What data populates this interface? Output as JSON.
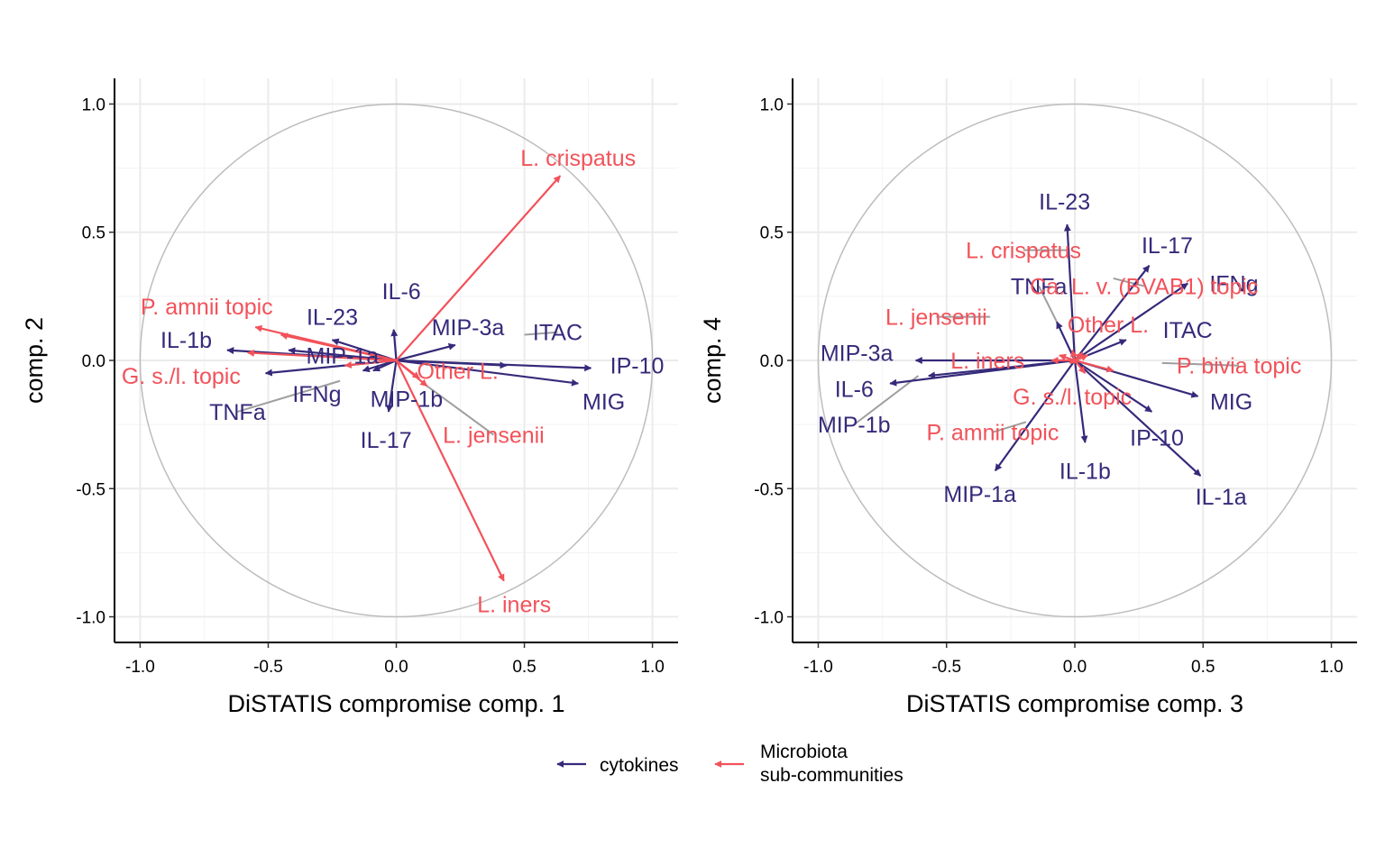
{
  "colors": {
    "cytokines": "#352a7a",
    "microbiota": "#f2525a",
    "leader": "#9e9e9e"
  },
  "legend": {
    "entries": [
      {
        "key": "cytokines",
        "lines": [
          "cytokines"
        ]
      },
      {
        "key": "microbiota",
        "lines": [
          "Microbiota",
          "sub-communities"
        ]
      }
    ]
  },
  "chart_data": [
    {
      "type": "scatter",
      "variant": "correlation-circle-arrows",
      "title": "",
      "xlabel": "DiSTATIS compromise comp. 1",
      "ylabel": "comp. 2",
      "xlim": [
        -1.1,
        1.1
      ],
      "ylim": [
        -1.1,
        1.1
      ],
      "xticks": [
        -1.0,
        -0.5,
        0.0,
        0.5,
        1.0
      ],
      "yticks": [
        -1.0,
        -0.5,
        0.0,
        0.5,
        1.0
      ],
      "xtick_labels": [
        "-1.0",
        "-0.5",
        "0.0",
        "0.5",
        "1.0"
      ],
      "ytick_labels": [
        "-1.0",
        "-0.5",
        "0.0",
        "0.5",
        "1.0"
      ],
      "grid": true,
      "unit_circle": true,
      "series": [
        {
          "name": "cytokines",
          "points": [
            {
              "label": "IP-10",
              "x": 0.76,
              "y": -0.03,
              "lx": 0.94,
              "ly": -0.02
            },
            {
              "label": "MIG",
              "x": 0.71,
              "y": -0.09,
              "lx": 0.81,
              "ly": -0.16
            },
            {
              "label": "ITAC",
              "x": 0.43,
              "y": -0.02,
              "lx": 0.63,
              "ly": 0.11,
              "leader": [
                0.5,
                0.1
              ]
            },
            {
              "label": "MIP-3a",
              "x": 0.23,
              "y": 0.06,
              "lx": 0.28,
              "ly": 0.13
            },
            {
              "label": "IL-6",
              "x": -0.01,
              "y": 0.12,
              "lx": 0.02,
              "ly": 0.27
            },
            {
              "label": "IL-23",
              "x": -0.25,
              "y": 0.08,
              "lx": -0.25,
              "ly": 0.17
            },
            {
              "label": "MIP-1a",
              "x": -0.42,
              "y": 0.04,
              "lx": -0.21,
              "ly": 0.02
            },
            {
              "label": "IL-1b",
              "x": -0.66,
              "y": 0.04,
              "lx": -0.82,
              "ly": 0.08
            },
            {
              "label": "IFNg",
              "x": -0.51,
              "y": -0.05,
              "lx": -0.31,
              "ly": -0.13
            },
            {
              "label": "TNFa",
              "x": -0.13,
              "y": -0.04,
              "lx": -0.62,
              "ly": -0.2,
              "leader": [
                -0.22,
                -0.08
              ]
            },
            {
              "label": "MIP-1b",
              "x": -0.09,
              "y": -0.04,
              "lx": 0.04,
              "ly": -0.15
            },
            {
              "label": "IL-17",
              "x": -0.03,
              "y": -0.2,
              "lx": -0.04,
              "ly": -0.31
            }
          ]
        },
        {
          "name": "Microbiota sub-communities",
          "points": [
            {
              "label": "L. crispatus",
              "x": 0.64,
              "y": 0.72,
              "lx": 0.71,
              "ly": 0.79
            },
            {
              "label": "L. iners",
              "x": 0.42,
              "y": -0.86,
              "lx": 0.46,
              "ly": -0.95
            },
            {
              "label": "L. jensenii",
              "x": 0.12,
              "y": -0.1,
              "lx": 0.38,
              "ly": -0.29,
              "leader": [
                0.12,
                -0.1
              ]
            },
            {
              "label": "Other L.",
              "x": 0.09,
              "y": -0.07,
              "lx": 0.24,
              "ly": -0.04
            },
            {
              "label": "P. amnii topic",
              "x": -0.55,
              "y": 0.13,
              "lx": -0.74,
              "ly": 0.21
            },
            {
              "label": "G. s./l. topic",
              "x": -0.58,
              "y": 0.03,
              "lx": -0.84,
              "ly": -0.06
            },
            {
              "label": "P. bivia topic",
              "x": -0.45,
              "y": 0.1,
              "lx": -1.5,
              "ly": 0.0,
              "hidden_label": true
            },
            {
              "label": "Ca. L. v. (BVAB1) topic",
              "x": -0.2,
              "y": -0.02,
              "lx": -1.5,
              "ly": 0.0,
              "hidden_label": true
            }
          ]
        }
      ]
    },
    {
      "type": "scatter",
      "variant": "correlation-circle-arrows",
      "title": "",
      "xlabel": "DiSTATIS compromise comp. 3",
      "ylabel": "comp. 4",
      "xlim": [
        -1.1,
        1.1
      ],
      "ylim": [
        -1.1,
        1.1
      ],
      "xticks": [
        -1.0,
        -0.5,
        0.0,
        0.5,
        1.0
      ],
      "yticks": [
        -1.0,
        -0.5,
        0.0,
        0.5,
        1.0
      ],
      "xtick_labels": [
        "-1.0",
        "-0.5",
        "0.0",
        "0.5",
        "1.0"
      ],
      "ytick_labels": [
        "-1.0",
        "-0.5",
        "0.0",
        "0.5",
        "1.0"
      ],
      "grid": true,
      "unit_circle": true,
      "series": [
        {
          "name": "cytokines",
          "points": [
            {
              "label": "IL-23",
              "x": -0.03,
              "y": 0.53,
              "lx": -0.04,
              "ly": 0.62
            },
            {
              "label": "IL-17",
              "x": 0.29,
              "y": 0.37,
              "lx": 0.36,
              "ly": 0.45
            },
            {
              "label": "IFNg",
              "x": 0.44,
              "y": 0.3,
              "lx": 0.62,
              "ly": 0.3
            },
            {
              "label": "ITAC",
              "x": 0.2,
              "y": 0.08,
              "lx": 0.44,
              "ly": 0.12
            },
            {
              "label": "TNFa",
              "x": -0.07,
              "y": 0.15,
              "lx": -0.14,
              "ly": 0.29,
              "leader": [
                -0.07,
                0.15
              ]
            },
            {
              "label": "MIP-3a",
              "x": -0.62,
              "y": 0.0,
              "lx": -0.85,
              "ly": 0.03
            },
            {
              "label": "IL-6",
              "x": -0.72,
              "y": -0.09,
              "lx": -0.86,
              "ly": -0.11
            },
            {
              "label": "MIP-1b",
              "x": -0.57,
              "y": -0.06,
              "lx": -0.86,
              "ly": -0.25,
              "leader": [
                -0.61,
                -0.06
              ]
            },
            {
              "label": "MIP-1a",
              "x": -0.31,
              "y": -0.43,
              "lx": -0.37,
              "ly": -0.52
            },
            {
              "label": "IL-1b",
              "x": 0.04,
              "y": -0.32,
              "lx": 0.04,
              "ly": -0.43
            },
            {
              "label": "IP-10",
              "x": 0.3,
              "y": -0.2,
              "lx": 0.32,
              "ly": -0.3
            },
            {
              "label": "MIG",
              "x": 0.48,
              "y": -0.14,
              "lx": 0.61,
              "ly": -0.16
            },
            {
              "label": "IL-1a",
              "x": 0.49,
              "y": -0.45,
              "lx": 0.57,
              "ly": -0.53
            }
          ]
        },
        {
          "name": "Microbiota sub-communities",
          "points": [
            {
              "label": "L. crispatus",
              "x": -0.01,
              "y": 0.04,
              "lx": -0.2,
              "ly": 0.43,
              "leader": [
                -0.02,
                0.43
              ]
            },
            {
              "label": "Ca. L. v. (BVAB1) topic",
              "x": 0.03,
              "y": 0.03,
              "lx": 0.27,
              "ly": 0.29,
              "leader": [
                0.15,
                0.32
              ]
            },
            {
              "label": "L. jensenii",
              "x": -0.06,
              "y": 0.02,
              "lx": -0.54,
              "ly": 0.17,
              "leader": [
                -0.33,
                0.17
              ]
            },
            {
              "label": "Other L.",
              "x": 0.05,
              "y": 0.02,
              "lx": 0.13,
              "ly": 0.14
            },
            {
              "label": "L. iners",
              "x": -0.09,
              "y": 0.0,
              "lx": -0.34,
              "ly": 0.0
            },
            {
              "label": "P. bivia topic",
              "x": 0.15,
              "y": -0.04,
              "lx": 0.64,
              "ly": -0.02,
              "leader": [
                0.34,
                -0.01
              ]
            },
            {
              "label": "G. s./l. topic",
              "x": -0.02,
              "y": -0.01,
              "lx": -0.01,
              "ly": -0.14
            },
            {
              "label": "P. amnii topic",
              "x": 0.04,
              "y": -0.05,
              "lx": -0.32,
              "ly": -0.28,
              "leader": [
                -0.19,
                -0.24
              ]
            }
          ]
        }
      ]
    }
  ]
}
